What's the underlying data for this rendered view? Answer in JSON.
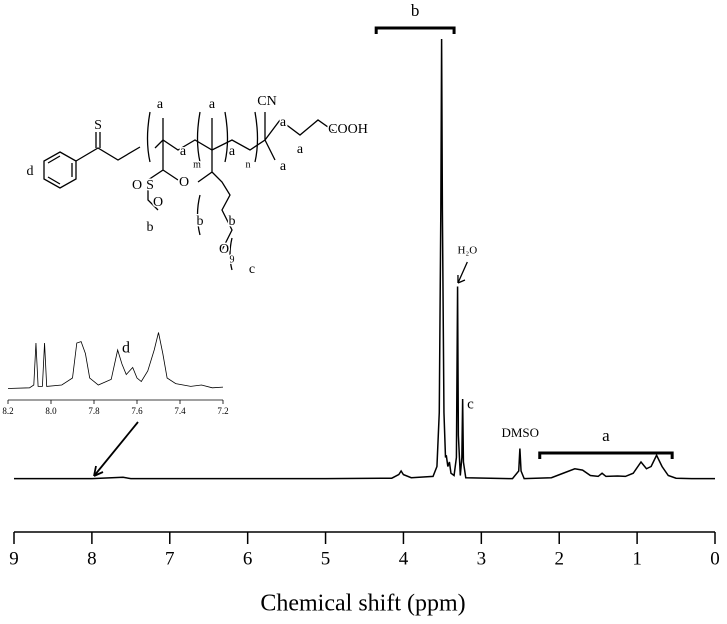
{
  "chart_data": {
    "type": "line",
    "x_label": "Chemical shift (ppm)",
    "xlim": [
      9,
      0
    ],
    "xticks": [
      9,
      8,
      7,
      6,
      5,
      4,
      3,
      2,
      1,
      0
    ],
    "ylim": [
      0,
      100
    ],
    "color": "#000000",
    "x": [
      9.0,
      8.0,
      7.6,
      7.5,
      5.0,
      4.15,
      4.06,
      4.03,
      4.0,
      3.9,
      3.62,
      3.57,
      3.54,
      3.52,
      3.51,
      3.5,
      3.48,
      3.46,
      3.45,
      3.43,
      3.41,
      3.39,
      3.35,
      3.32,
      3.305,
      3.295,
      3.27,
      3.25,
      3.24,
      3.23,
      3.2,
      2.6,
      2.52,
      2.505,
      2.49,
      2.45,
      2.1,
      1.95,
      1.8,
      1.7,
      1.6,
      1.5,
      1.45,
      1.4,
      1.25,
      1.15,
      1.05,
      0.95,
      0.88,
      0.82,
      0.75,
      0.68,
      0.6,
      0.5,
      0.3,
      0.0
    ],
    "values": [
      0.3,
      0.3,
      0.6,
      0.3,
      0.3,
      0.4,
      1.2,
      2,
      1.2,
      0.5,
      0.8,
      3,
      15,
      60,
      98,
      60,
      15,
      5,
      5.5,
      3,
      4,
      1.5,
      1,
      5,
      43,
      10,
      1,
      5,
      18,
      4,
      0.5,
      0.3,
      2,
      7,
      2,
      0.3,
      0.5,
      1.5,
      2.5,
      2.2,
      1,
      0.8,
      1.5,
      0.8,
      0.9,
      0.8,
      1.5,
      4,
      2.5,
      3,
      5.5,
      3,
      1,
      0.4,
      0.3,
      0.3
    ],
    "annotations": [
      "b",
      "a",
      "c",
      "DMSO",
      "H₂O"
    ],
    "inset": {
      "title": "d",
      "xlim": [
        8.2,
        7.2
      ],
      "ylim": [
        0,
        100
      ],
      "xticks": [
        8.2,
        {
          "value": 8,
          "label": "8.0"
        },
        7.8,
        7.6,
        7.4,
        7.2
      ],
      "x": [
        8.2,
        8.1,
        8.08,
        8.07,
        8.06,
        8.04,
        8.03,
        8.02,
        7.95,
        7.9,
        7.88,
        7.86,
        7.84,
        7.82,
        7.78,
        7.72,
        7.69,
        7.67,
        7.65,
        7.62,
        7.6,
        7.58,
        7.55,
        7.52,
        7.5,
        7.48,
        7.46,
        7.42,
        7.35,
        7.3,
        7.25,
        7.2
      ],
      "values": [
        5,
        6,
        10,
        70,
        8,
        8,
        70,
        8,
        10,
        20,
        70,
        72,
        55,
        20,
        10,
        18,
        60,
        40,
        25,
        35,
        20,
        15,
        30,
        60,
        85,
        55,
        20,
        12,
        8,
        10,
        6,
        7
      ]
    },
    "structure": {
      "labels": [
        "S",
        "S",
        "d",
        "a",
        "a",
        "m",
        "a",
        "a",
        "n",
        "CN",
        "a",
        "COOH",
        "a",
        "a",
        "O",
        "O",
        "b",
        "O",
        "b",
        "b",
        "O",
        "9",
        "c"
      ]
    }
  }
}
